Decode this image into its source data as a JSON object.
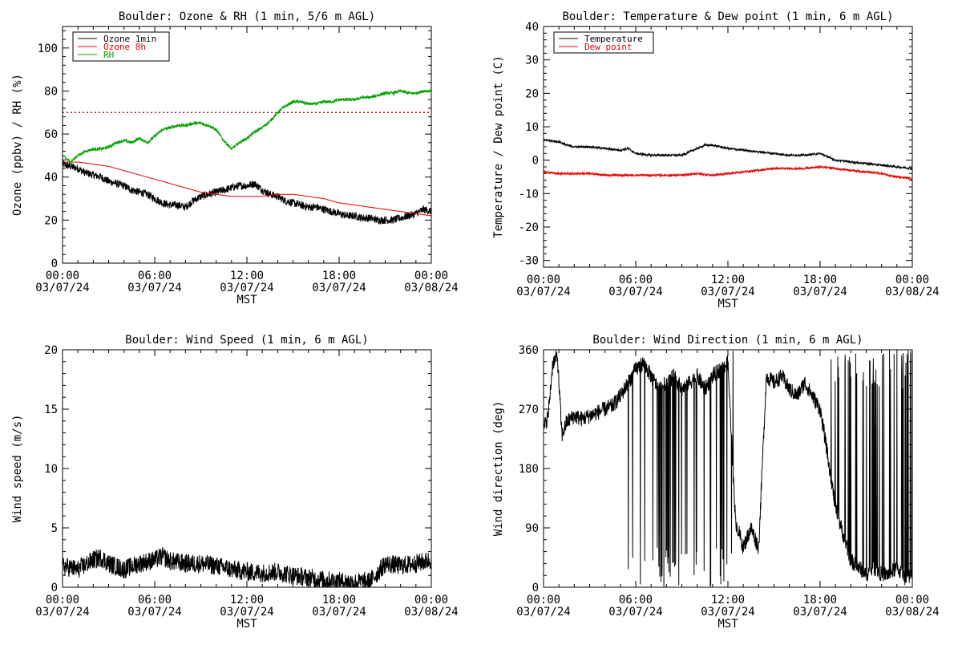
{
  "chart_data": [
    {
      "type": "line",
      "title": "Boulder: Ozone & RH (1 min, 5/6 m AGL)",
      "xlabel": "MST",
      "ylabel": "Ozone (ppbv) / RH (%)",
      "ylim": [
        0,
        110
      ],
      "yticks": [
        0,
        20,
        40,
        60,
        80,
        100
      ],
      "xlim": [
        0,
        24
      ],
      "xticks_time": [
        "00:00",
        "06:00",
        "12:00",
        "18:00",
        "00:00"
      ],
      "xticks_date": [
        "03/07/24",
        "03/07/24",
        "03/07/24",
        "03/07/24",
        "03/08/24"
      ],
      "legend_placement": "top-left",
      "reference_line": {
        "y": 70,
        "color": "#e60000",
        "style": "dotted"
      },
      "series": [
        {
          "name": "Ozone 1min",
          "color": "#000000",
          "x": [
            0,
            0.5,
            1,
            1.5,
            2,
            2.5,
            3,
            3.5,
            4,
            4.5,
            5,
            5.5,
            6,
            6.5,
            7,
            7.5,
            8,
            8.5,
            9,
            9.5,
            10,
            10.5,
            11,
            11.5,
            12,
            12.5,
            13,
            13.5,
            14,
            14.5,
            15,
            15.5,
            16,
            16.5,
            17,
            17.5,
            18,
            18.5,
            19,
            19.5,
            20,
            20.5,
            21,
            21.5,
            22,
            22.5,
            23,
            23.5,
            24
          ],
          "y": [
            46,
            45,
            44,
            42,
            41,
            40,
            38,
            37,
            36,
            34,
            33,
            32,
            30,
            28,
            27,
            27,
            26,
            29,
            31,
            32,
            33,
            34,
            35,
            36,
            36,
            37,
            34,
            32,
            31,
            29,
            28,
            27,
            26,
            26,
            25,
            24,
            23,
            22,
            22,
            21,
            21,
            20,
            20,
            20,
            21,
            22,
            23,
            25,
            24
          ],
          "noise": 1.8
        },
        {
          "name": "Ozone 8h",
          "color": "#e60000",
          "x": [
            0,
            1,
            2,
            3,
            4,
            5,
            6,
            7,
            8,
            9,
            10,
            11,
            12,
            13,
            14,
            15,
            16,
            17,
            18,
            19,
            20,
            21,
            22,
            23,
            24
          ],
          "y": [
            47,
            47,
            46,
            45,
            43,
            41,
            39,
            37,
            35,
            33,
            32,
            31,
            31,
            31,
            32,
            32,
            31,
            30,
            28,
            27,
            26,
            25,
            24,
            23,
            22
          ],
          "noise": 0
        },
        {
          "name": "RH",
          "color": "#00a000",
          "x": [
            0,
            0.5,
            1,
            1.5,
            2,
            2.5,
            3,
            3.5,
            4,
            4.5,
            5,
            5.5,
            6,
            6.5,
            7,
            7.5,
            8,
            8.5,
            9,
            9.5,
            10,
            10.5,
            11,
            11.5,
            12,
            12.5,
            13,
            13.5,
            14,
            14.5,
            15,
            15.5,
            16,
            16.5,
            17,
            17.5,
            18,
            18.5,
            19,
            19.5,
            20,
            20.5,
            21,
            21.5,
            22,
            22.5,
            23,
            23.5,
            24
          ],
          "y": [
            50,
            47,
            50,
            52,
            53,
            53,
            54,
            56,
            57,
            56,
            58,
            56,
            59,
            62,
            63,
            64,
            64,
            65,
            65,
            64,
            62,
            57,
            53,
            56,
            58,
            61,
            63,
            66,
            70,
            73,
            75,
            75,
            74,
            74,
            75,
            75,
            76,
            76,
            76,
            77,
            77,
            78,
            79,
            79,
            80,
            79,
            79,
            80,
            80
          ],
          "noise": 0.7
        }
      ]
    },
    {
      "type": "line",
      "title": "Boulder: Temperature & Dew point (1 min, 6 m AGL)",
      "xlabel": "MST",
      "ylabel": "Temperature / Dew point (C)",
      "ylim": [
        -32,
        40
      ],
      "yticks": [
        -30,
        -20,
        -10,
        0,
        10,
        20,
        30,
        40
      ],
      "xlim": [
        0,
        24
      ],
      "xticks_time": [
        "00:00",
        "06:00",
        "12:00",
        "18:00",
        "00:00"
      ],
      "xticks_date": [
        "03/07/24",
        "03/07/24",
        "03/07/24",
        "03/07/24",
        "03/08/24"
      ],
      "legend_placement": "top-left",
      "series": [
        {
          "name": "Temperature",
          "color": "#000000",
          "x": [
            0,
            1,
            1.5,
            2,
            3,
            4,
            5,
            5.5,
            6,
            7,
            8,
            9,
            9.5,
            10,
            10.5,
            11,
            12,
            13,
            14,
            15,
            16,
            17,
            18,
            18.5,
            19,
            20,
            21,
            22,
            23,
            24
          ],
          "y": [
            6,
            5.5,
            4.5,
            4,
            4,
            3.5,
            3,
            3.5,
            2,
            1.5,
            1.5,
            1.5,
            2.5,
            3.5,
            4.5,
            4.5,
            3.5,
            3,
            2.5,
            2,
            1.5,
            1.5,
            2,
            1,
            0,
            -0.5,
            -1,
            -1.5,
            -2,
            -2.5
          ],
          "noise": 0.3
        },
        {
          "name": "Dew point",
          "color": "#e60000",
          "x": [
            0,
            1,
            2,
            3,
            4,
            5,
            6,
            7,
            8,
            9,
            10,
            11,
            12,
            13,
            14,
            15,
            16,
            17,
            18,
            19,
            20,
            21,
            22,
            23,
            24
          ],
          "y": [
            -3.5,
            -4,
            -4,
            -4,
            -4.5,
            -4.5,
            -4.5,
            -4.5,
            -4.5,
            -4.5,
            -4,
            -4.5,
            -4,
            -3.5,
            -3,
            -2.5,
            -2.5,
            -2.5,
            -2,
            -2.5,
            -3,
            -3.5,
            -4,
            -5,
            -5.5
          ],
          "noise": 0.3
        }
      ]
    },
    {
      "type": "line",
      "title": "Boulder: Wind Speed (1 min, 6 m AGL)",
      "xlabel": "MST",
      "ylabel": "Wind speed (m/s)",
      "ylim": [
        0,
        20
      ],
      "yticks": [
        0,
        5,
        10,
        15,
        20
      ],
      "xlim": [
        0,
        24
      ],
      "xticks_time": [
        "00:00",
        "06:00",
        "12:00",
        "18:00",
        "00:00"
      ],
      "xticks_date": [
        "03/07/24",
        "03/07/24",
        "03/07/24",
        "03/07/24",
        "03/08/24"
      ],
      "series": [
        {
          "color": "#000000",
          "x": [
            0,
            1,
            2,
            2.5,
            3,
            4,
            5,
            6,
            6.5,
            7,
            8,
            9,
            10,
            11,
            12,
            13,
            14,
            15,
            16,
            17,
            18,
            19,
            20,
            20.5,
            21,
            22,
            23,
            24
          ],
          "y": [
            1.8,
            1.5,
            2.3,
            2.5,
            2,
            1.5,
            2,
            2.3,
            2.6,
            2.2,
            2,
            2,
            1.8,
            1.5,
            1.3,
            1.2,
            1.3,
            1,
            0.8,
            0.6,
            0.5,
            0.4,
            0.5,
            1.2,
            2,
            1.8,
            2,
            2.3
          ],
          "noise": 0.8
        }
      ]
    },
    {
      "type": "line",
      "title": "Boulder: Wind Direction (1 min, 6 m AGL)",
      "xlabel": "MST",
      "ylabel": "Wind direction (deg)",
      "ylim": [
        0,
        360
      ],
      "yticks": [
        0,
        90,
        180,
        270,
        360
      ],
      "xlim": [
        0,
        24
      ],
      "xticks_time": [
        "00:00",
        "06:00",
        "12:00",
        "18:00",
        "00:00"
      ],
      "xticks_date": [
        "03/07/24",
        "03/07/24",
        "03/07/24",
        "03/07/24",
        "03/08/24"
      ],
      "series": [
        {
          "color": "#000000",
          "x": [
            0,
            0.3,
            0.6,
            0.9,
            1.2,
            1.5,
            2,
            2.5,
            3,
            3.5,
            4,
            4.5,
            5,
            5.5,
            6,
            6.5,
            7,
            7.5,
            8,
            8.5,
            9,
            9.5,
            10,
            10.5,
            11,
            11.5,
            12,
            12.5,
            13,
            13.5,
            14,
            14.5,
            15,
            15.5,
            16,
            16.5,
            17,
            17.5,
            18,
            18.5,
            19,
            19.5,
            20,
            20.5,
            21,
            21.5,
            22,
            22.5,
            23,
            23.5,
            24
          ],
          "y": [
            240,
            260,
            340,
            350,
            230,
            250,
            260,
            255,
            260,
            265,
            270,
            275,
            290,
            310,
            330,
            340,
            320,
            300,
            310,
            320,
            300,
            310,
            320,
            300,
            320,
            330,
            340,
            100,
            60,
            90,
            60,
            320,
            310,
            320,
            300,
            290,
            310,
            290,
            270,
            200,
            120,
            80,
            40,
            30,
            20,
            30,
            20,
            20,
            30,
            15,
            20
          ],
          "noise": 12,
          "wrap_bands": [
            [
              5.5,
              12.5
            ],
            [
              18.5,
              24
            ]
          ]
        }
      ]
    }
  ]
}
